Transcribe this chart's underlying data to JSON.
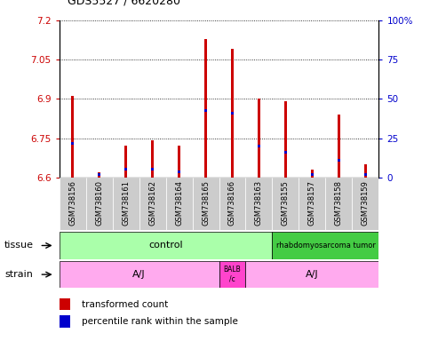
{
  "title": "GDS5527 / 6620280",
  "samples": [
    "GSM738156",
    "GSM738160",
    "GSM738161",
    "GSM738162",
    "GSM738164",
    "GSM738165",
    "GSM738166",
    "GSM738163",
    "GSM738155",
    "GSM738157",
    "GSM738158",
    "GSM738159"
  ],
  "red_values": [
    6.91,
    6.62,
    6.72,
    6.74,
    6.72,
    7.13,
    7.09,
    6.9,
    6.89,
    6.63,
    6.84,
    6.65
  ],
  "blue_values": [
    6.73,
    6.61,
    6.63,
    6.63,
    6.62,
    6.855,
    6.845,
    6.72,
    6.695,
    6.61,
    6.665,
    6.61
  ],
  "ymin": 6.6,
  "ymax": 7.2,
  "yticks": [
    6.6,
    6.75,
    6.9,
    7.05,
    7.2
  ],
  "ytick_labels": [
    "6.6",
    "6.75",
    "6.9",
    "7.05",
    "7.2"
  ],
  "right_yticks": [
    0,
    25,
    50,
    75,
    100
  ],
  "right_ytick_labels": [
    "0",
    "25",
    "50",
    "75",
    "100%"
  ],
  "bar_color_red": "#CC0000",
  "bar_color_blue": "#0000CC",
  "left_label_color": "#CC0000",
  "right_label_color": "#0000CC",
  "tissue_control_color": "#AAFFAA",
  "tissue_rhabdo_color": "#44CC44",
  "strain_aj_color": "#FFAAEE",
  "strain_balb_color": "#FF44CC",
  "sample_bg_color": "#CCCCCC"
}
